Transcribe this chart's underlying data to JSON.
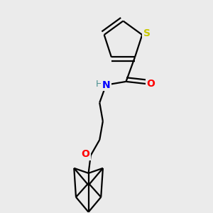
{
  "background_color": "#ebebeb",
  "atom_colors": {
    "S": "#c8c800",
    "N": "#0000ff",
    "O": "#ff0000",
    "C": "#000000",
    "H": "#4a9090"
  },
  "bond_color": "#000000",
  "line_width": 1.6,
  "figsize": [
    3.0,
    3.0
  ],
  "dpi": 100
}
